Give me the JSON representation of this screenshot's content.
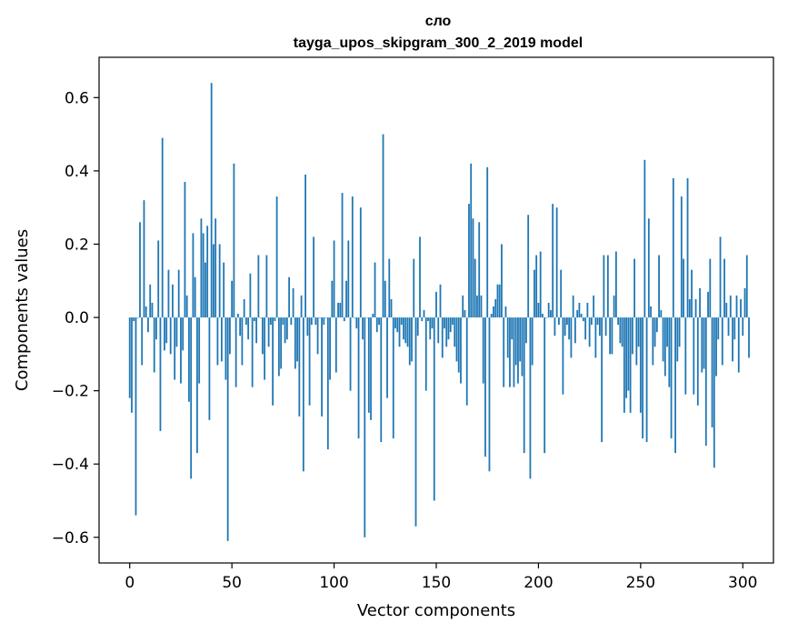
{
  "chart_data": {
    "type": "bar",
    "title": "сло",
    "subtitle": "tayga_upos_skipgram_300_2_2019 model",
    "xlabel": "Vector components",
    "ylabel": "Components values",
    "xlim": [
      -15,
      315
    ],
    "ylim": [
      -0.67,
      0.71
    ],
    "xticks": [
      0,
      50,
      100,
      150,
      200,
      250,
      300
    ],
    "xtick_labels": [
      "0",
      "50",
      "100",
      "150",
      "200",
      "250",
      "300"
    ],
    "yticks": [
      -0.6,
      -0.4,
      -0.2,
      0.0,
      0.2,
      0.4,
      0.6
    ],
    "ytick_labels": [
      "−0.6",
      "−0.4",
      "−0.2",
      "0.0",
      "0.2",
      "0.4",
      "0.6"
    ],
    "bar_color": "#1f77b4",
    "grid": false,
    "values": [
      -0.22,
      -0.26,
      -0.01,
      -0.54,
      0.0,
      0.26,
      -0.13,
      0.32,
      0.03,
      -0.04,
      0.09,
      0.04,
      -0.15,
      -0.06,
      0.21,
      -0.31,
      0.49,
      -0.09,
      -0.07,
      0.13,
      -0.1,
      0.09,
      -0.17,
      -0.08,
      0.13,
      -0.18,
      -0.09,
      0.37,
      0.06,
      -0.23,
      -0.44,
      0.23,
      0.11,
      -0.37,
      -0.18,
      0.27,
      0.23,
      0.15,
      0.25,
      -0.28,
      0.64,
      0.2,
      0.27,
      -0.13,
      0.2,
      -0.12,
      0.15,
      -0.17,
      -0.61,
      -0.1,
      0.1,
      0.42,
      -0.19,
      0.01,
      -0.05,
      -0.13,
      0.05,
      -0.02,
      -0.06,
      0.12,
      -0.19,
      -0.01,
      -0.07,
      0.17,
      0.0,
      -0.1,
      -0.17,
      0.17,
      -0.08,
      -0.02,
      -0.24,
      -0.01,
      0.33,
      -0.16,
      -0.14,
      -0.02,
      -0.07,
      -0.06,
      0.11,
      -0.02,
      0.08,
      -0.14,
      -0.12,
      -0.27,
      0.06,
      -0.42,
      0.39,
      -0.05,
      -0.24,
      -0.02,
      0.22,
      -0.02,
      -0.1,
      0.0,
      -0.27,
      -0.02,
      0.0,
      -0.36,
      -0.17,
      0.1,
      0.21,
      -0.15,
      0.04,
      0.04,
      0.34,
      -0.01,
      0.1,
      0.21,
      -0.2,
      0.33,
      0.0,
      -0.03,
      -0.33,
      0.3,
      -0.06,
      -0.6,
      0.0,
      -0.26,
      -0.28,
      0.01,
      0.15,
      -0.04,
      -0.02,
      -0.34,
      0.5,
      0.1,
      -0.22,
      0.16,
      0.05,
      -0.33,
      -0.03,
      -0.04,
      -0.08,
      -0.02,
      -0.06,
      -0.07,
      -0.08,
      -0.13,
      -0.12,
      0.16,
      -0.57,
      -0.05,
      0.22,
      -0.01,
      0.02,
      -0.2,
      -0.01,
      -0.06,
      -0.03,
      -0.5,
      0.07,
      -0.07,
      0.09,
      -0.11,
      -0.03,
      -0.08,
      -0.06,
      -0.04,
      -0.02,
      -0.08,
      -0.12,
      -0.15,
      -0.18,
      0.06,
      0.02,
      -0.24,
      0.31,
      0.42,
      0.27,
      0.16,
      0.06,
      0.26,
      0.06,
      -0.18,
      -0.38,
      0.41,
      -0.42,
      0.01,
      0.03,
      0.05,
      0.09,
      0.09,
      0.2,
      -0.19,
      0.03,
      -0.11,
      -0.19,
      -0.06,
      -0.19,
      -0.13,
      -0.18,
      -0.12,
      -0.16,
      -0.37,
      -0.07,
      0.28,
      -0.44,
      -0.13,
      0.13,
      0.17,
      0.04,
      0.18,
      0.01,
      -0.37,
      0.0,
      0.04,
      0.02,
      0.31,
      -0.05,
      0.3,
      -0.02,
      0.13,
      -0.21,
      -0.05,
      -0.02,
      -0.06,
      -0.11,
      0.06,
      -0.07,
      0.02,
      0.04,
      0.01,
      -0.01,
      -0.06,
      0.04,
      -0.08,
      -0.02,
      0.06,
      -0.11,
      -0.02,
      -0.05,
      -0.34,
      0.17,
      -0.05,
      0.17,
      -0.1,
      -0.1,
      0.06,
      0.18,
      -0.02,
      -0.07,
      -0.08,
      -0.26,
      -0.22,
      -0.2,
      -0.26,
      -0.1,
      0.16,
      -0.13,
      -0.08,
      -0.26,
      -0.33,
      0.43,
      -0.34,
      0.27,
      0.03,
      -0.13,
      -0.08,
      -0.04,
      0.17,
      0.02,
      -0.12,
      -0.16,
      -0.08,
      -0.19,
      -0.33,
      0.38,
      -0.37,
      -0.12,
      -0.08,
      0.33,
      0.16,
      -0.21,
      0.38,
      0.05,
      0.13,
      -0.21,
      0.05,
      -0.24,
      0.08,
      -0.15,
      -0.14,
      -0.35,
      0.07,
      0.16,
      -0.3,
      -0.41,
      -0.16,
      -0.06,
      0.22,
      -0.13,
      0.16,
      0.04,
      -0.05,
      0.06,
      -0.12,
      -0.06,
      0.06,
      -0.15,
      0.05,
      -0.05,
      0.08,
      0.17,
      -0.11
    ]
  }
}
